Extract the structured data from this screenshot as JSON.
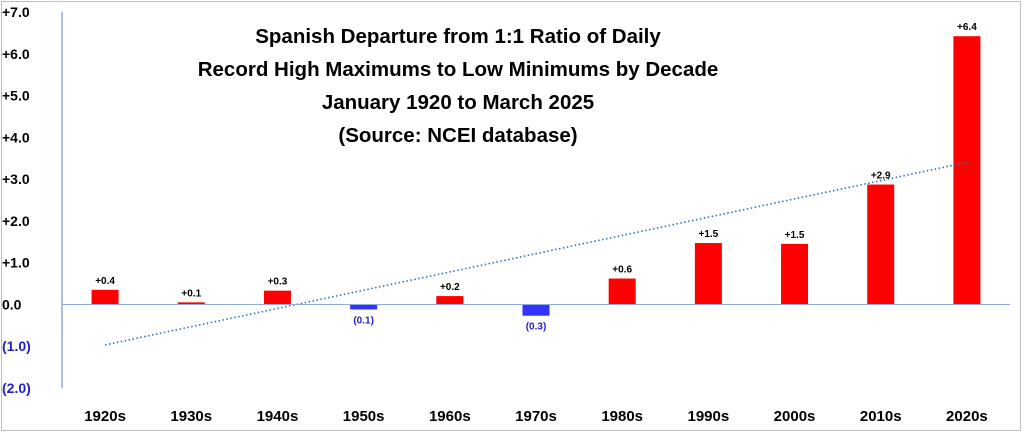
{
  "chart_data": {
    "type": "bar",
    "title_lines": [
      "Spanish Departure from 1:1 Ratio of Daily",
      "Record High Maximums to  Low Minimums by Decade",
      "January 1920 to March 2025",
      "(Source: NCEI database)"
    ],
    "categories": [
      "1920s",
      "1930s",
      "1940s",
      "1950s",
      "1960s",
      "1970s",
      "1980s",
      "1990s",
      "2000s",
      "2010s",
      "2020s"
    ],
    "values": [
      0.35,
      0.05,
      0.33,
      -0.12,
      0.2,
      -0.27,
      0.62,
      1.47,
      1.45,
      2.87,
      6.42
    ],
    "data_labels": [
      "+0.4",
      "+0.1",
      "+0.3",
      "(0.1)",
      "+0.2",
      "(0.3)",
      "+0.6",
      "+1.5",
      "+1.5",
      "+2.9",
      "+6.4"
    ],
    "ylim": [
      -2.0,
      7.0
    ],
    "yticks": [
      7,
      6,
      5,
      4,
      3,
      2,
      1,
      0,
      -1,
      -2
    ],
    "ytick_labels": [
      "+7.0",
      "+6.0",
      "+5.0",
      "+4.0",
      "+3.0",
      "+2.0",
      "+1.0",
      "0.0",
      "(1.0)",
      "(2.0)"
    ],
    "trendline": {
      "type": "linear",
      "start": -0.97,
      "end": 3.4
    },
    "grid": false,
    "colors": {
      "positive": "#ff0000",
      "negative": "#3333ff",
      "trend": "#2e75b6",
      "axis": "#8faadc",
      "positive_label": "#000000",
      "negative_label": "#1f1fcc"
    }
  }
}
